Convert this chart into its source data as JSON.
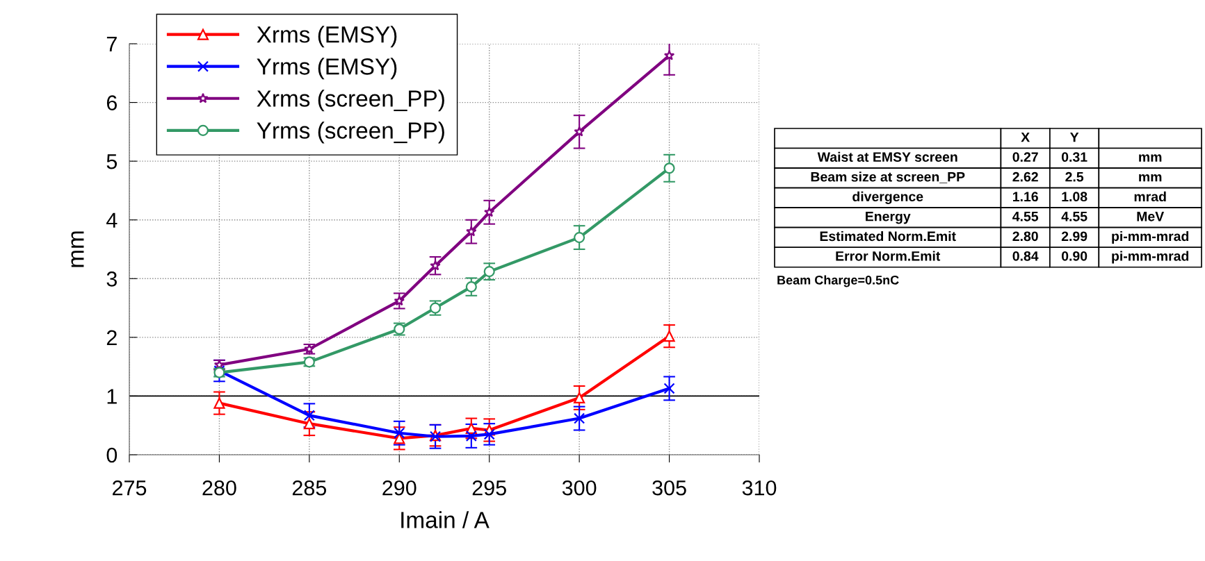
{
  "chart_data": [
    {
      "type": "line",
      "xlabel": "Imain / A",
      "ylabel": "mm",
      "x": [
        280,
        285,
        290,
        292,
        294,
        295,
        300,
        305
      ],
      "xlim": [
        275,
        310
      ],
      "xticks": [
        275,
        280,
        285,
        290,
        295,
        300,
        305,
        310
      ],
      "ylim": [
        0,
        7
      ],
      "yticks": [
        0,
        1,
        2,
        3,
        4,
        5,
        6,
        7
      ],
      "grid": true,
      "legend": "top left",
      "line_style": "solid",
      "ref_lines": [
        {
          "axis": "y",
          "value": 1,
          "color": "#000000"
        }
      ],
      "series": [
        {
          "name": "Xrms (EMSY)",
          "color": "#ff0000",
          "marker": "triangle",
          "values": [
            0.88,
            0.53,
            0.28,
            0.33,
            0.45,
            0.42,
            0.97,
            2.02
          ],
          "errors": [
            0.19,
            0.2,
            0.19,
            0.18,
            0.17,
            0.19,
            0.2,
            0.19
          ]
        },
        {
          "name": "Yrms (EMSY)",
          "color": "#0000ff",
          "marker": "cross",
          "values": [
            1.43,
            0.67,
            0.37,
            0.31,
            0.32,
            0.35,
            0.62,
            1.13
          ],
          "errors": [
            0.18,
            0.2,
            0.2,
            0.2,
            0.2,
            0.18,
            0.2,
            0.2
          ]
        },
        {
          "name": "Xrms (screen_PP)",
          "color": "#800080",
          "marker": "star",
          "values": [
            1.53,
            1.8,
            2.62,
            3.22,
            3.8,
            4.13,
            5.5,
            6.8
          ],
          "errors": [
            0.08,
            0.08,
            0.13,
            0.15,
            0.2,
            0.2,
            0.28,
            0.33
          ]
        },
        {
          "name": "Yrms (screen_PP)",
          "color": "#339966",
          "marker": "circle",
          "values": [
            1.4,
            1.58,
            2.14,
            2.5,
            2.86,
            3.12,
            3.7,
            4.88
          ],
          "errors": [
            0.07,
            0.07,
            0.1,
            0.12,
            0.15,
            0.14,
            0.2,
            0.23
          ]
        }
      ]
    },
    {
      "type": "other",
      "categories": [
        null,
        "X",
        "Y",
        null
      ],
      "y_categories": [
        "Waist at EMSY screen",
        "Beam size at screen_PP",
        "divergence",
        "Energy",
        "Estimated Norm.Emit",
        "Error Norm.Emit"
      ],
      "cell_labels": [
        [
          "0.27",
          "0.31",
          "mm"
        ],
        [
          "2.62",
          "2.5",
          "mm"
        ],
        [
          "1.16",
          "1.08",
          "mrad"
        ],
        [
          "4.55",
          "4.55",
          "MeV"
        ],
        [
          "2.80",
          "2.99",
          "pi-mm-mrad"
        ],
        [
          "0.84",
          "0.90",
          "pi-mm-mrad"
        ]
      ],
      "annotations": [
        "Beam Charge=0.5nC"
      ]
    }
  ]
}
